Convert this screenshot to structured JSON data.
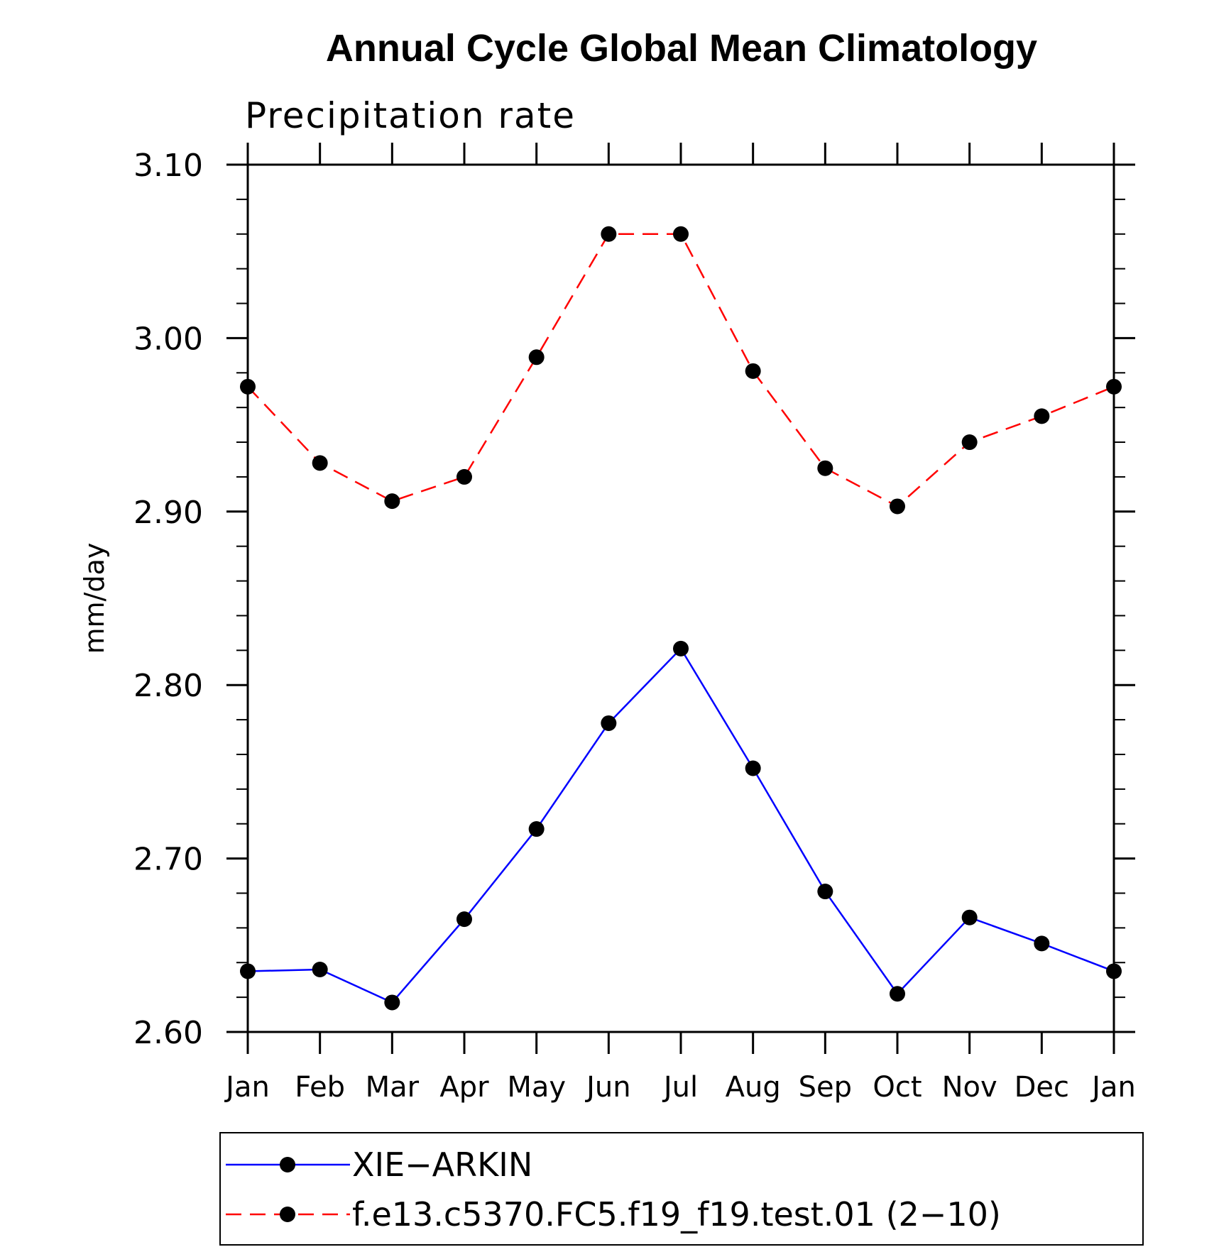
{
  "chart_data": {
    "type": "line",
    "title": "Annual Cycle Global Mean Climatology",
    "subtitle": "Precipitation rate",
    "xlabel": "",
    "ylabel": "mm/day",
    "categories": [
      "Jan",
      "Feb",
      "Mar",
      "Apr",
      "May",
      "Jun",
      "Jul",
      "Aug",
      "Sep",
      "Oct",
      "Nov",
      "Dec",
      "Jan"
    ],
    "ylim": [
      2.6,
      3.1
    ],
    "yticks": [
      "2.60",
      "2.70",
      "2.80",
      "2.90",
      "3.00",
      "3.10"
    ],
    "grid": false,
    "legend_position": "bottom",
    "series": [
      {
        "name": "XIE−ARKIN",
        "color": "#0000ff",
        "dash": "solid",
        "marker": "filled-circle",
        "values": [
          2.635,
          2.636,
          2.617,
          2.665,
          2.717,
          2.778,
          2.821,
          2.752,
          2.681,
          2.622,
          2.666,
          2.651,
          2.635
        ]
      },
      {
        "name": "f.e13.c5370.FC5.f19_f19.test.01 (2−10)",
        "color": "#ff0000",
        "dash": "dashed",
        "marker": "filled-circle",
        "values": [
          2.972,
          2.928,
          2.906,
          2.92,
          2.989,
          3.06,
          3.06,
          2.981,
          2.925,
          2.903,
          2.94,
          2.955,
          2.972
        ]
      }
    ]
  }
}
